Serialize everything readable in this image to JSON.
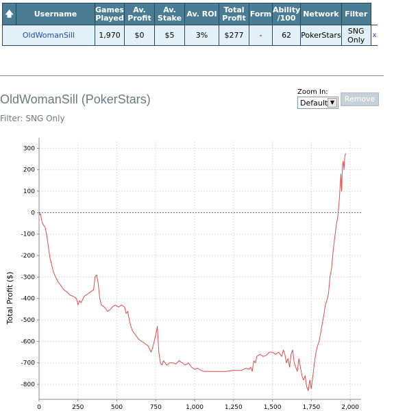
{
  "table": {
    "headers": [
      "",
      "Username",
      "Games Played",
      "Av. Profit",
      "Av. Stake",
      "Av. ROI",
      "Total Profit",
      "Form",
      "Ability /100",
      "Network",
      "Filter"
    ],
    "sort_icon": "up-arrow-icon",
    "row": {
      "username": "OldWomanSill",
      "games_played": "1,970",
      "av_profit": "$0",
      "av_stake": "$5",
      "av_roi": "3%",
      "total_profit": "$277",
      "form": "-",
      "ability": "62",
      "network": "PokerStars",
      "filter": "SNG Only",
      "remove": "x"
    }
  },
  "chart_header": {
    "title": "OldWomanSill (PokerStars)",
    "filter": "Filter: SNG Only",
    "zoom_label": "Zoom In:",
    "zoom_value": "Default",
    "remove_button": "Remove"
  },
  "colors": {
    "header_bg": "#4a7d94",
    "row_bg": "#e4f0f7",
    "line": "#e8474a",
    "zero_line": "#5a5ad8"
  },
  "chart_data": {
    "type": "line",
    "title": "",
    "xlabel": "",
    "ylabel": "Total Profit ($)",
    "xlim": [
      0,
      2070
    ],
    "ylim": [
      -870,
      330
    ],
    "x_ticks": [
      0,
      250,
      500,
      750,
      1000,
      1250,
      1500,
      1750,
      2000
    ],
    "x_tick_labels": [
      "0",
      "250",
      "500",
      "750",
      "1,000",
      "1,250",
      "1,500",
      "1,750",
      "2,000"
    ],
    "y_ticks": [
      300,
      200,
      100,
      0,
      -100,
      -200,
      -300,
      -400,
      -500,
      -600,
      -700,
      -800
    ],
    "y_tick_labels": [
      "300",
      "200",
      "100",
      "0",
      "-100",
      "-200",
      "-300",
      "-400",
      "-500",
      "-600",
      "-700",
      "-800"
    ],
    "grid": true,
    "series": [
      {
        "color": "#e8474a",
        "x": [
          0,
          5,
          10,
          15,
          20,
          30,
          40,
          50,
          60,
          70,
          80,
          90,
          100,
          120,
          140,
          160,
          180,
          200,
          220,
          240,
          250,
          260,
          270,
          290,
          310,
          330,
          350,
          360,
          370,
          380,
          390,
          400,
          420,
          440,
          460,
          470,
          490,
          510,
          530,
          550,
          560,
          570,
          580,
          590,
          600,
          620,
          640,
          660,
          680,
          700,
          720,
          730,
          740,
          750,
          760,
          770,
          780,
          790,
          800,
          810,
          820,
          840,
          860,
          880,
          900,
          920,
          940,
          960,
          980,
          1000,
          1020,
          1040,
          1060,
          1080,
          1100,
          1150,
          1200,
          1250,
          1300,
          1330,
          1350,
          1360,
          1370,
          1380,
          1390,
          1400,
          1420,
          1440,
          1460,
          1480,
          1500,
          1520,
          1540,
          1550,
          1560,
          1570,
          1580,
          1590,
          1600,
          1610,
          1620,
          1630,
          1640,
          1650,
          1660,
          1670,
          1680,
          1690,
          1700,
          1710,
          1720,
          1730,
          1740,
          1750,
          1760,
          1770,
          1780,
          1790,
          1800,
          1810,
          1820,
          1830,
          1840,
          1850,
          1860,
          1870,
          1880,
          1890,
          1900,
          1910,
          1920,
          1930,
          1935,
          1940,
          1945,
          1950,
          1955,
          1960,
          1965,
          1970
        ],
        "y": [
          0,
          -10,
          -5,
          -30,
          -45,
          -60,
          -70,
          -110,
          -160,
          -210,
          -240,
          -270,
          -290,
          -320,
          -340,
          -360,
          -370,
          -385,
          -390,
          -400,
          -430,
          -410,
          -420,
          -390,
          -380,
          -370,
          -360,
          -300,
          -290,
          -330,
          -400,
          -430,
          -440,
          -460,
          -450,
          -440,
          -430,
          -440,
          -430,
          -440,
          -470,
          -460,
          -500,
          -530,
          -550,
          -570,
          -590,
          -600,
          -610,
          -620,
          -650,
          -630,
          -600,
          -570,
          -530,
          -650,
          -700,
          -710,
          -690,
          -700,
          -710,
          -700,
          -700,
          -705,
          -690,
          -700,
          -710,
          -700,
          -720,
          -730,
          -725,
          -735,
          -740,
          -740,
          -740,
          -740,
          -740,
          -735,
          -735,
          -725,
          -730,
          -720,
          -740,
          -690,
          -700,
          -670,
          -660,
          -670,
          -665,
          -650,
          -650,
          -660,
          -650,
          -660,
          -670,
          -640,
          -660,
          -700,
          -680,
          -720,
          -660,
          -640,
          -700,
          -720,
          -740,
          -680,
          -720,
          -760,
          -780,
          -760,
          -810,
          -830,
          -780,
          -820,
          -760,
          -700,
          -650,
          -620,
          -600,
          -560,
          -520,
          -480,
          -430,
          -410,
          -380,
          -300,
          -260,
          -180,
          -120,
          -60,
          -20,
          60,
          120,
          180,
          100,
          220,
          240,
          200,
          260,
          277
        ]
      }
    ],
    "reference_line": {
      "y": 0,
      "style": "dashed"
    }
  }
}
